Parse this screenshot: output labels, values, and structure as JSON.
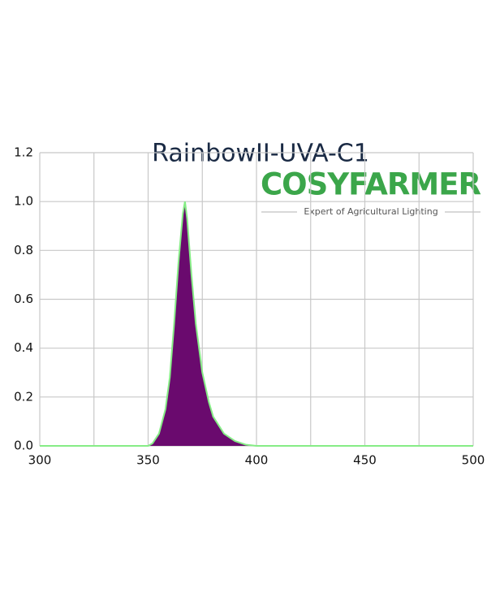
{
  "chart_data": {
    "type": "area",
    "title": "RainbowII-UVA-C1",
    "logo": "COSYFARMER",
    "tagline": "Expert of Agricultural Lighting",
    "x": [
      300,
      350,
      352,
      355,
      358,
      360,
      362,
      364,
      366,
      367,
      368,
      370,
      372,
      375,
      378,
      380,
      385,
      390,
      395,
      400,
      500
    ],
    "values": [
      0,
      0,
      0.01,
      0.05,
      0.15,
      0.28,
      0.5,
      0.75,
      0.95,
      1.0,
      0.93,
      0.7,
      0.5,
      0.3,
      0.18,
      0.12,
      0.05,
      0.02,
      0.005,
      0,
      0
    ],
    "color": "#6a0a6e",
    "line_color": "#86ec86",
    "xlim": [
      300,
      500
    ],
    "xticks": [
      300,
      350,
      400,
      450,
      500
    ],
    "x_gridlines": [
      300,
      325,
      350,
      375,
      400,
      425,
      450,
      475,
      500
    ],
    "ylim": [
      0,
      1.2
    ],
    "yticks": [
      {
        "value": 0,
        "label": "0.0"
      },
      {
        "value": 0.2,
        "label": "0.2"
      },
      {
        "value": 0.4,
        "label": "0.4"
      },
      {
        "value": 0.6,
        "label": "0.6"
      },
      {
        "value": 0.8,
        "label": "0.8"
      },
      {
        "value": 1.0,
        "label": "1.0"
      },
      {
        "value": 1.2,
        "label": "1.2"
      }
    ],
    "grid": true
  }
}
